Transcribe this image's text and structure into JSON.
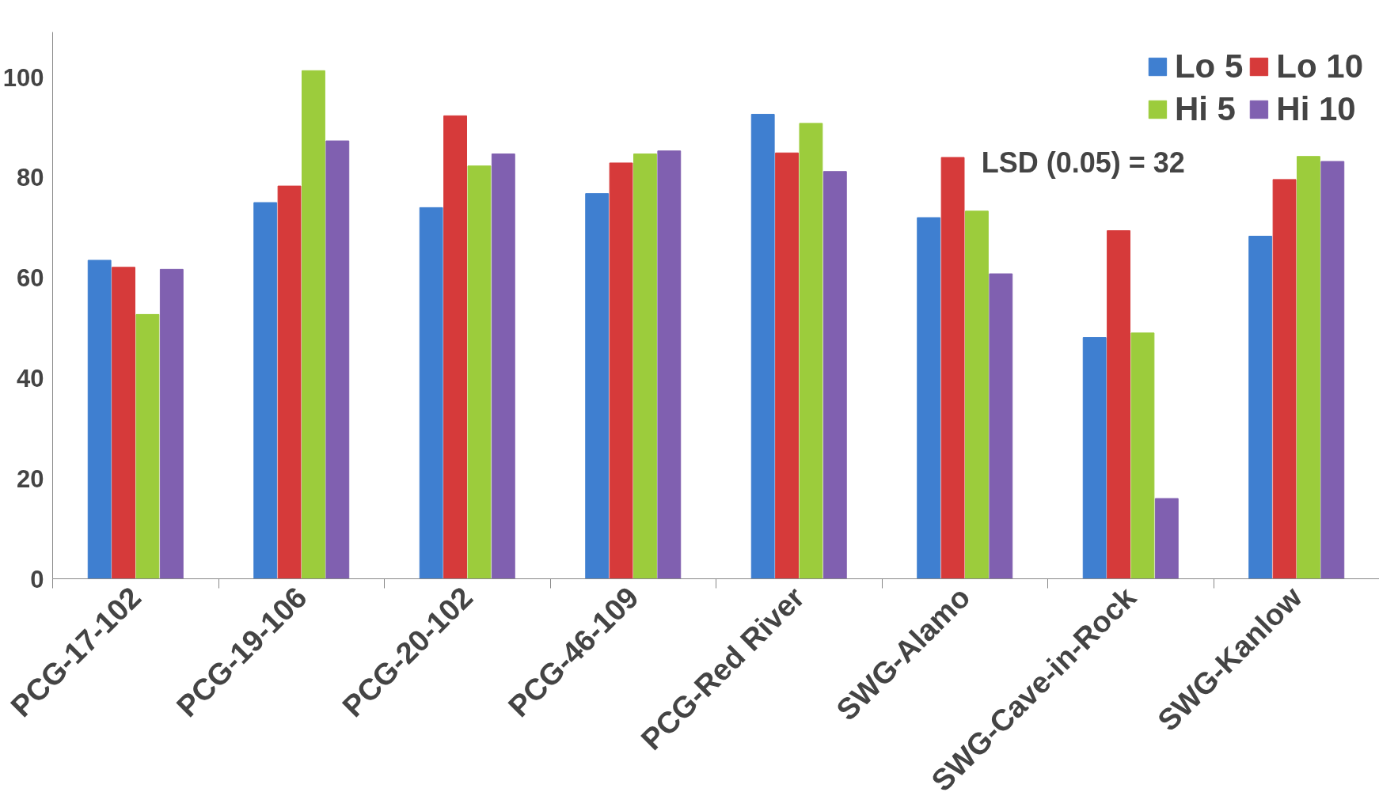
{
  "chart_data": {
    "type": "bar",
    "categories": [
      "PCG-17-102",
      "PCG-19-106",
      "PCG-20-102",
      "PCG-46-109",
      "PCG-Red River",
      "SWG-Alamo",
      "SWG-Cave-in-Rock",
      "SWG-Kanlow"
    ],
    "series": [
      {
        "name": "Lo 5",
        "color": "#3f7fd0",
        "values": [
          63.5,
          75,
          74,
          76.8,
          92.6,
          72,
          48.1,
          68.3
        ]
      },
      {
        "name": "Lo 10",
        "color": "#d63a3a",
        "values": [
          62.1,
          78.3,
          92.3,
          82.9,
          84.9,
          84,
          69.4,
          79.6
        ]
      },
      {
        "name": "Hi 5",
        "color": "#9ccc3c",
        "values": [
          52.7,
          101.3,
          82.3,
          84.7,
          90.8,
          73.3,
          49,
          84.2
        ]
      },
      {
        "name": "Hi 10",
        "color": "#8060b0",
        "values": [
          61.7,
          87.3,
          84.7,
          85.3,
          81.2,
          60.8,
          16,
          83.2
        ]
      }
    ],
    "ylim": [
      0,
      109
    ],
    "yticks": [
      0,
      20,
      40,
      60,
      80,
      100
    ],
    "annotations": [
      "LSD (0.05) = 32"
    ],
    "legend": "top right",
    "grid": false
  }
}
